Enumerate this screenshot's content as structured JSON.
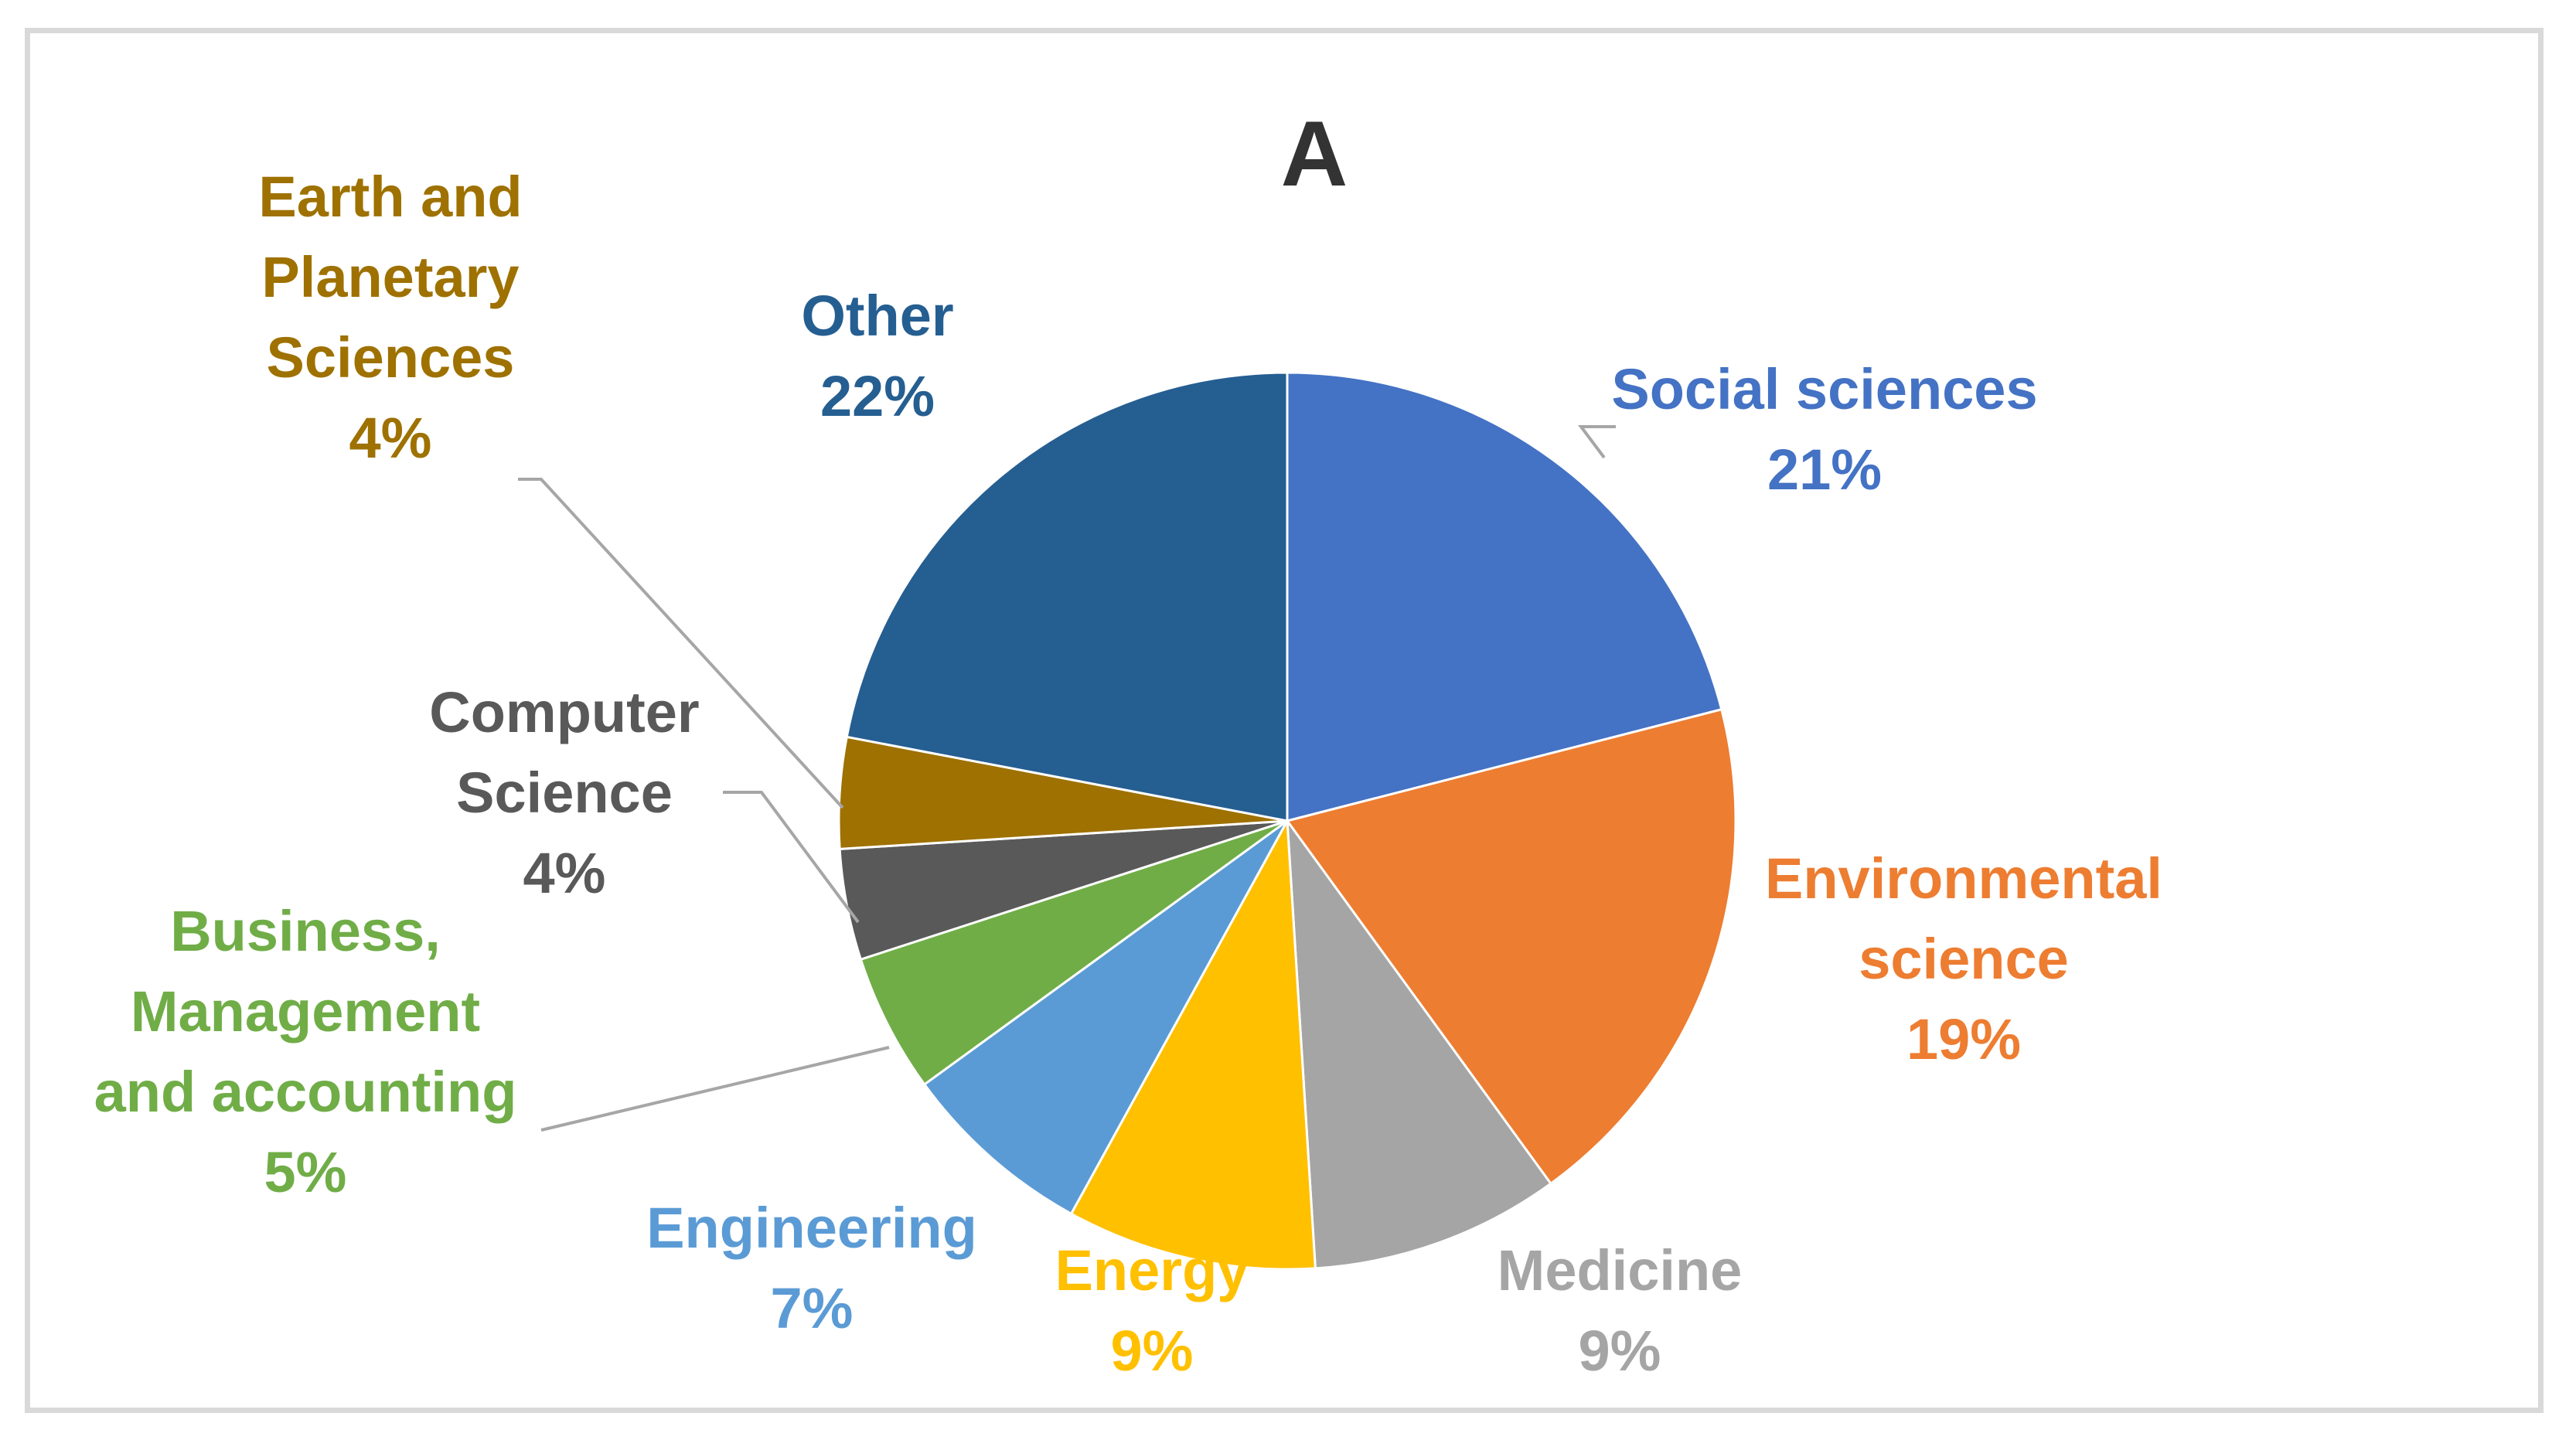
{
  "chart_data": {
    "type": "pie",
    "title": "A",
    "slices": [
      {
        "label": [
          "Social sciences"
        ],
        "percent_label": "21%",
        "value": 21,
        "color": "#4472C4"
      },
      {
        "label": [
          "Environmental",
          "science"
        ],
        "percent_label": "19%",
        "value": 19,
        "color": "#ED7D31"
      },
      {
        "label": [
          "Medicine"
        ],
        "percent_label": "9%",
        "value": 9,
        "color": "#A5A5A5"
      },
      {
        "label": [
          "Energy"
        ],
        "percent_label": "9%",
        "value": 9,
        "color": "#FFC000"
      },
      {
        "label": [
          "Engineering"
        ],
        "percent_label": "7%",
        "value": 7,
        "color": "#5B9BD5"
      },
      {
        "label": [
          "Business,",
          "Management",
          "and accounting"
        ],
        "percent_label": "5%",
        "value": 5,
        "color": "#70AD47"
      },
      {
        "label": [
          "Computer",
          "Science"
        ],
        "percent_label": "4%",
        "value": 4,
        "color": "#595959"
      },
      {
        "label": [
          "Earth and",
          "Planetary",
          "Sciences"
        ],
        "percent_label": "4%",
        "value": 4,
        "color": "#9E7100"
      },
      {
        "label": [
          "Other"
        ],
        "percent_label": "22%",
        "value": 22,
        "color": "#255E91"
      }
    ],
    "label_colors": [
      "#4472C4",
      "#ED7D31",
      "#A5A5A5",
      "#FFC000",
      "#5B9BD5",
      "#70AD47",
      "#595959",
      "#9E7100",
      "#255E91"
    ],
    "leader_line_color": "#a6a6a6"
  }
}
